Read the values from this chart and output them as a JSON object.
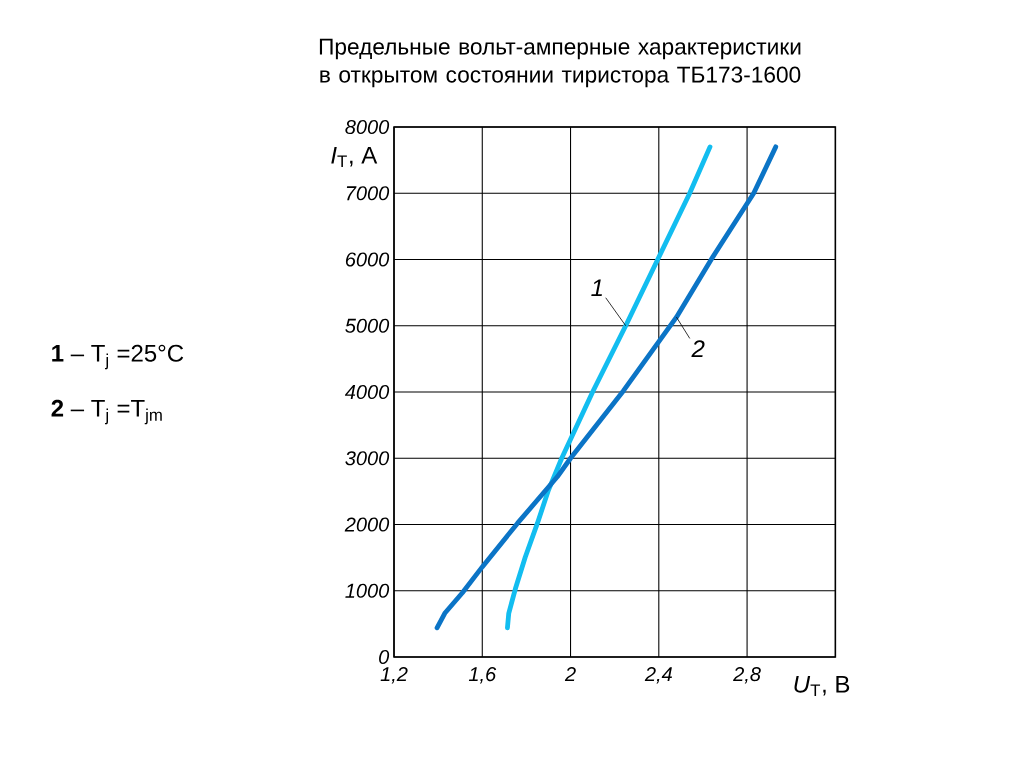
{
  "chart_data": {
    "type": "line",
    "title": "Предельные вольт-амперные характеристики в открытом состоянии тиристора ТБ173-1600",
    "xlabel": "*U*$_{T}$, В",
    "ylabel": "*I*$_{T}$, А",
    "series": [
      {
        "name": "1",
        "color": "#12bdf0",
        "x": [
          1.714,
          1.72,
          1.75,
          1.795,
          1.85,
          1.9,
          1.96,
          2.1,
          2.25,
          2.395,
          2.54,
          2.632
        ],
        "values": [
          440,
          660,
          1030,
          1510,
          2020,
          2520,
          3000,
          4000,
          5000,
          6000,
          7000,
          7700
        ]
      },
      {
        "name": "2",
        "color": "#0b74c6",
        "x": [
          1.395,
          1.43,
          1.51,
          1.6,
          1.76,
          1.94,
          2.0,
          2.24,
          2.48,
          2.645,
          2.83,
          2.93
        ],
        "values": [
          440,
          660,
          970,
          1360,
          2020,
          2720,
          3000,
          4020,
          5130,
          6040,
          7000,
          7700
        ]
      }
    ],
    "xlim": [
      1.2,
      3.2
    ],
    "ylim": [
      0,
      8000
    ],
    "xticks": [
      {
        "value": 1.2,
        "label": "1,2"
      },
      {
        "value": 1.6,
        "label": "1,6"
      },
      {
        "value": 2,
        "label": "2"
      },
      {
        "value": 2.4,
        "label": "2,4"
      },
      {
        "value": 2.8,
        "label": "2,8"
      }
    ],
    "yticks": [
      0,
      1000,
      2000,
      3000,
      4000,
      5000,
      6000,
      7000,
      8000
    ],
    "grid": true,
    "marker": "none",
    "line_style": "solid",
    "annotations": [
      "**1** – T$_{j}$ =25°C",
      "**2** – T$_{j}$ =T$_{jm}$"
    ]
  }
}
